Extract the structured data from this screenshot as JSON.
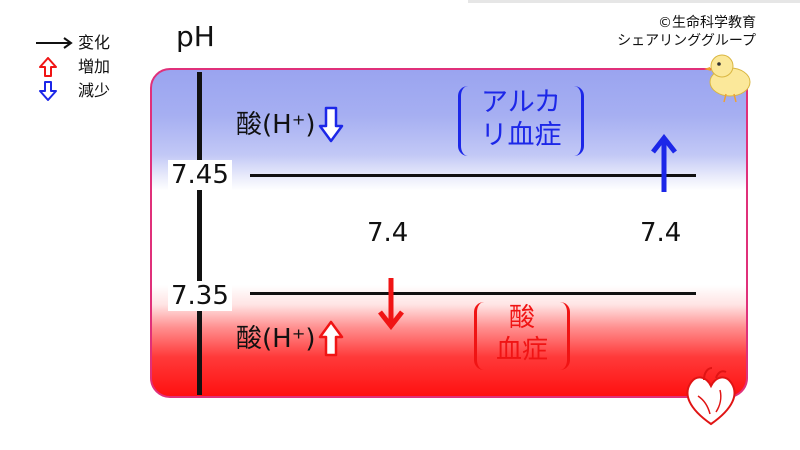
{
  "legend": {
    "items": [
      {
        "label": "変化",
        "icon": "right-arrow-icon",
        "color": "#111111"
      },
      {
        "label": "増加",
        "icon": "up-outline-arrow-icon",
        "color": "#f01414"
      },
      {
        "label": "減少",
        "icon": "down-outline-arrow-icon",
        "color": "#1c27e8"
      }
    ]
  },
  "credit": {
    "line1": "©生命科学教育",
    "line2": "シェアリンググループ"
  },
  "axis": {
    "label": "pH",
    "upper_tick": "7.45",
    "lower_tick": "7.35"
  },
  "center_values": {
    "left": "7.4",
    "right": "7.4"
  },
  "upper_region": {
    "acid_label": "酸(H⁺)",
    "acid_arrow": "down-outline-arrow-icon",
    "condition_line1": "アルカ",
    "condition_line2": "リ血症",
    "color": "#1c27e8"
  },
  "lower_region": {
    "acid_label": "酸(H⁺)",
    "acid_arrow": "up-outline-arrow-icon",
    "condition_line1": "酸",
    "condition_line2": "血症",
    "color": "#f01414"
  },
  "shift_arrows": {
    "up": {
      "icon": "up-arrow-icon",
      "color": "#1c27e8"
    },
    "down": {
      "icon": "down-arrow-icon",
      "color": "#f01414"
    }
  },
  "decorations": {
    "chick": "chick-illustration",
    "heart": "heart-illustration"
  }
}
